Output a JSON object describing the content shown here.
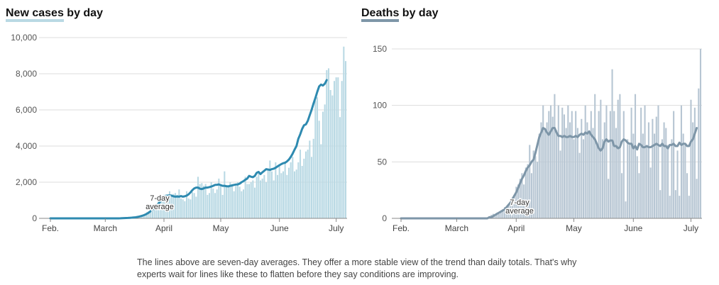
{
  "note": "The lines above are seven-day averages. They offer a more stable view of the trend than daily totals. That's why experts wait for lines like these to flatten before they say conditions are improving.",
  "colors": {
    "cases_bar": "#b9d9e4",
    "cases_line": "#2e8ab0",
    "deaths_bar": "#b7c6d3",
    "deaths_line": "#7e96a8",
    "grid": "#dddddd",
    "axis": "#555555"
  },
  "chart_data": [
    {
      "type": "bar",
      "title_kw": "New cases",
      "title_rest": " by day",
      "xlabel": "",
      "ylabel": "",
      "ylim": [
        0,
        10000
      ],
      "yticks": [
        0,
        2000,
        4000,
        6000,
        8000,
        10000
      ],
      "ytick_labels": [
        "0",
        "2,000",
        "4,000",
        "6,000",
        "8,000",
        "10,000"
      ],
      "xticks": [
        {
          "label": "Feb.",
          "day": 0
        },
        {
          "label": "March",
          "day": 29
        },
        {
          "label": "April",
          "day": 60
        },
        {
          "label": "May",
          "day": 90
        },
        {
          "label": "June",
          "day": 121
        },
        {
          "label": "July",
          "day": 151
        }
      ],
      "annotation": [
        "7-day",
        "average"
      ],
      "day_count": 157,
      "daily": [
        0,
        0,
        0,
        0,
        0,
        0,
        0,
        0,
        0,
        0,
        0,
        0,
        0,
        0,
        0,
        0,
        0,
        0,
        0,
        0,
        0,
        0,
        0,
        0,
        0,
        0,
        0,
        0,
        0,
        0,
        0,
        0,
        0,
        5,
        5,
        10,
        10,
        15,
        15,
        20,
        25,
        30,
        40,
        50,
        60,
        80,
        100,
        130,
        160,
        200,
        260,
        330,
        400,
        500,
        600,
        700,
        800,
        950,
        1100,
        1250,
        1300,
        1000,
        1100,
        1500,
        1200,
        1350,
        1400,
        1300,
        1600,
        1100,
        1050,
        950,
        1500,
        1100,
        1050,
        1450,
        1400,
        1200,
        2300,
        1900,
        1950,
        1800,
        1900,
        1300,
        1400,
        2000,
        1650,
        1400,
        1600,
        2200,
        1800,
        1300,
        2600,
        1800,
        1800,
        2000,
        1900,
        1500,
        1800,
        2000,
        1750,
        1500,
        1600,
        2300,
        1900,
        1900,
        2000,
        2100,
        1700,
        2300,
        2500,
        2100,
        2200,
        2400,
        2000,
        2700,
        3200,
        2600,
        2100,
        3100,
        2400,
        2900,
        2500,
        2600,
        3100,
        2400,
        2800,
        3100,
        3400,
        2600,
        2700,
        3100,
        3800,
        2900,
        3300,
        3700,
        3800,
        4300,
        3400,
        4400,
        6500,
        6700,
        5400,
        4100,
        5900,
        6300,
        8200,
        8300,
        7100,
        6800,
        7600,
        7800,
        7800,
        5600,
        7600,
        9500,
        8700
      ],
      "avg": [
        0,
        0,
        0,
        0,
        0,
        0,
        0,
        0,
        0,
        0,
        0,
        0,
        0,
        0,
        0,
        0,
        0,
        0,
        0,
        0,
        0,
        0,
        0,
        0,
        0,
        0,
        0,
        0,
        0,
        0,
        0,
        0,
        0,
        0,
        0,
        0,
        0,
        5,
        10,
        15,
        20,
        25,
        30,
        40,
        50,
        60,
        80,
        100,
        130,
        160,
        200,
        260,
        320,
        400,
        500,
        580,
        680,
        800,
        920,
        1050,
        1180,
        1250,
        1260,
        1270,
        1260,
        1220,
        1200,
        1210,
        1200,
        1230,
        1200,
        1220,
        1260,
        1330,
        1430,
        1560,
        1660,
        1700,
        1700,
        1640,
        1620,
        1660,
        1700,
        1700,
        1730,
        1760,
        1800,
        1850,
        1860,
        1880,
        1840,
        1800,
        1800,
        1780,
        1770,
        1800,
        1820,
        1850,
        1870,
        1880,
        1920,
        2000,
        2060,
        2140,
        2200,
        2350,
        2300,
        2280,
        2350,
        2520,
        2570,
        2450,
        2550,
        2630,
        2720,
        2700,
        2680,
        2720,
        2750,
        2800,
        2870,
        2940,
        3000,
        3050,
        3080,
        3150,
        3250,
        3400,
        3580,
        3800,
        4000,
        4400,
        4650,
        4950,
        5150,
        5200,
        5400,
        5700,
        6000,
        6350,
        6650,
        7000,
        7300,
        7400,
        7350,
        7450,
        7650
      ]
    },
    {
      "type": "bar",
      "title_kw": "Deaths",
      "title_rest": " by day",
      "xlabel": "",
      "ylabel": "",
      "ylim": [
        0,
        150
      ],
      "yticks": [
        0,
        50,
        100,
        150
      ],
      "ytick_labels": [
        "0",
        "50",
        "100",
        "150"
      ],
      "xticks": [
        {
          "label": "Feb.",
          "day": 0
        },
        {
          "label": "March",
          "day": 29
        },
        {
          "label": "April",
          "day": 60
        },
        {
          "label": "May",
          "day": 90
        },
        {
          "label": "June",
          "day": 121
        },
        {
          "label": "July",
          "day": 151
        }
      ],
      "annotation": [
        "7-day",
        "average"
      ],
      "day_count": 157,
      "daily": [
        0,
        0,
        0,
        0,
        0,
        0,
        0,
        0,
        0,
        0,
        0,
        0,
        0,
        0,
        0,
        0,
        0,
        0,
        0,
        0,
        0,
        0,
        0,
        0,
        0,
        0,
        0,
        0,
        0,
        0,
        0,
        0,
        0,
        0,
        0,
        0,
        0,
        0,
        0,
        0,
        0,
        0,
        0,
        0,
        0,
        1,
        2,
        3,
        4,
        3,
        5,
        4,
        6,
        8,
        10,
        8,
        12,
        15,
        18,
        20,
        28,
        30,
        35,
        40,
        30,
        45,
        48,
        65,
        40,
        60,
        55,
        50,
        75,
        85,
        100,
        80,
        85,
        95,
        100,
        90,
        110,
        78,
        100,
        60,
        98,
        92,
        80,
        100,
        85,
        95,
        70,
        95,
        80,
        58,
        88,
        70,
        100,
        85,
        75,
        95,
        80,
        110,
        65,
        95,
        105,
        70,
        85,
        100,
        35,
        95,
        132,
        95,
        80,
        105,
        110,
        40,
        95,
        15,
        70,
        65,
        98,
        75,
        110,
        55,
        40,
        98,
        75,
        100,
        65,
        85,
        45,
        88,
        75,
        90,
        100,
        25,
        70,
        85,
        80,
        65,
        20,
        70,
        95,
        25,
        60,
        20,
        100,
        75,
        65,
        40,
        20,
        105,
        85,
        98,
        35,
        115,
        150
      ],
      "avg": [
        0,
        0,
        0,
        0,
        0,
        0,
        0,
        0,
        0,
        0,
        0,
        0,
        0,
        0,
        0,
        0,
        0,
        0,
        0,
        0,
        0,
        0,
        0,
        0,
        0,
        0,
        0,
        0,
        0,
        0,
        0,
        0,
        0,
        0,
        0,
        0,
        0,
        0,
        0,
        0,
        0,
        0,
        0,
        0,
        0,
        0,
        1,
        1,
        2,
        3,
        4,
        5,
        6,
        7,
        8,
        10,
        12,
        14,
        17,
        20,
        23,
        27,
        31,
        35,
        38,
        42,
        45,
        47,
        50,
        52,
        58,
        65,
        72,
        76,
        80,
        79,
        76,
        74,
        77,
        80,
        80,
        76,
        73,
        73,
        72,
        73,
        72,
        72,
        73,
        72,
        72,
        73,
        72,
        74,
        75,
        74,
        76,
        75,
        77,
        74,
        72,
        70,
        66,
        62,
        60,
        62,
        68,
        70,
        68,
        69,
        69,
        64,
        64,
        62,
        63,
        68,
        70,
        69,
        67,
        66,
        66,
        62,
        64,
        61,
        66,
        65,
        63,
        63,
        64,
        63,
        63,
        64,
        65,
        66,
        65,
        64,
        66,
        64,
        64,
        62,
        65,
        65,
        66,
        64,
        64,
        67,
        65,
        66,
        66,
        64,
        64,
        68,
        70,
        75,
        80
      ]
    }
  ]
}
